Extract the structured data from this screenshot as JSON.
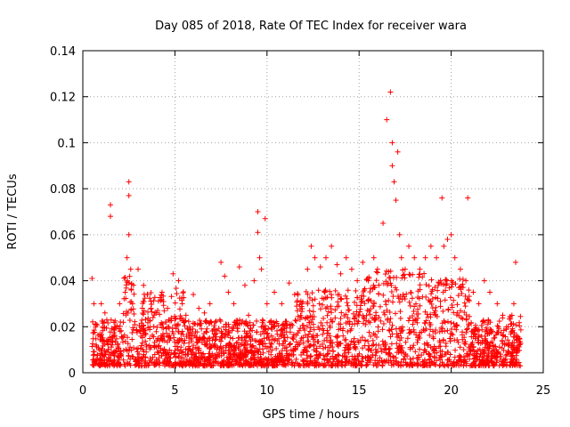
{
  "chart_data": {
    "type": "scatter",
    "title": "Day 085 of 2018, Rate Of TEC Index for receiver wara",
    "xlabel": "GPS time / hours",
    "ylabel": "ROTI / TECUs",
    "xlim": [
      0,
      25
    ],
    "ylim": [
      0,
      0.14
    ],
    "xticks": [
      0,
      5,
      10,
      15,
      20,
      25
    ],
    "yticks": [
      0,
      0.02,
      0.04,
      0.06,
      0.08,
      0.1,
      0.12,
      0.14
    ],
    "xtick_labels": [
      "0",
      "5",
      "10",
      "15",
      "20",
      "25"
    ],
    "ytick_labels": [
      "0",
      "0.02",
      "0.04",
      "0.06",
      "0.08",
      "0.1",
      "0.12",
      "0.14"
    ],
    "grid": true,
    "marker": "+",
    "color": "#ff0000",
    "series": [
      {
        "name": "ROTI",
        "note": "dense band roughly 0.003-0.03 TECU/min across 0.5-23.8 h; representative outliers listed",
        "x": [
          0.5,
          0.6,
          0.7,
          1.0,
          1.2,
          1.5,
          1.5,
          2.0,
          2.3,
          2.4,
          2.5,
          2.5,
          2.5,
          2.6,
          2.7,
          3.0,
          3.3,
          3.5,
          3.7,
          4.0,
          4.3,
          4.6,
          4.9,
          5.2,
          5.4,
          5.6,
          5.8,
          6.0,
          6.3,
          6.6,
          6.9,
          7.2,
          7.5,
          7.7,
          7.9,
          8.2,
          8.5,
          8.8,
          9.0,
          9.3,
          9.5,
          9.5,
          9.6,
          9.7,
          9.9,
          10.0,
          10.4,
          10.8,
          11.2,
          11.5,
          11.9,
          12.2,
          12.4,
          12.6,
          12.9,
          13.2,
          13.5,
          13.8,
          14.0,
          14.3,
          14.6,
          14.9,
          15.2,
          15.5,
          15.8,
          16.0,
          16.3,
          16.5,
          16.7,
          16.8,
          16.8,
          16.9,
          17.0,
          17.1,
          17.2,
          17.3,
          17.5,
          17.7,
          18.0,
          18.3,
          18.6,
          18.9,
          19.2,
          19.5,
          19.6,
          19.8,
          20.0,
          20.2,
          20.5,
          20.8,
          20.9,
          21.2,
          21.5,
          21.8,
          22.1,
          22.5,
          22.8,
          23.1,
          23.4,
          23.5,
          23.7
        ],
        "y": [
          0.041,
          0.03,
          0.02,
          0.03,
          0.026,
          0.073,
          0.068,
          0.03,
          0.035,
          0.05,
          0.083,
          0.077,
          0.06,
          0.045,
          0.03,
          0.045,
          0.038,
          0.034,
          0.028,
          0.026,
          0.035,
          0.028,
          0.043,
          0.04,
          0.03,
          0.025,
          0.02,
          0.034,
          0.028,
          0.026,
          0.03,
          0.022,
          0.048,
          0.042,
          0.035,
          0.03,
          0.046,
          0.038,
          0.025,
          0.04,
          0.07,
          0.061,
          0.05,
          0.045,
          0.067,
          0.03,
          0.035,
          0.03,
          0.039,
          0.034,
          0.03,
          0.045,
          0.055,
          0.05,
          0.046,
          0.05,
          0.055,
          0.047,
          0.043,
          0.05,
          0.045,
          0.04,
          0.048,
          0.04,
          0.05,
          0.045,
          0.065,
          0.11,
          0.122,
          0.1,
          0.09,
          0.083,
          0.075,
          0.096,
          0.06,
          0.05,
          0.045,
          0.055,
          0.05,
          0.045,
          0.05,
          0.055,
          0.05,
          0.076,
          0.055,
          0.058,
          0.06,
          0.05,
          0.045,
          0.04,
          0.076,
          0.035,
          0.03,
          0.04,
          0.035,
          0.03,
          0.025,
          0.02,
          0.03,
          0.048,
          0.015
        ]
      }
    ]
  }
}
